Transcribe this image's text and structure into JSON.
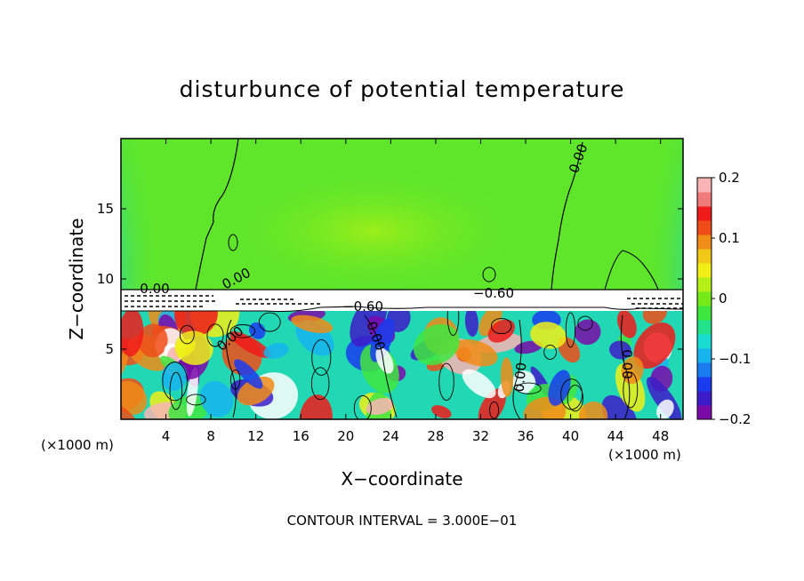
{
  "chart_data": {
    "type": "heatmap",
    "title": "disturbunce of potential temperature",
    "xlabel": "X−coordinate",
    "ylabel": "Z−coordinate",
    "x_unit_label": "(×1000 m)",
    "y_unit_label": "(×1000 m)",
    "xlim": [
      0,
      50
    ],
    "ylim": [
      0,
      20
    ],
    "x_ticks": [
      4,
      8,
      12,
      16,
      20,
      24,
      28,
      32,
      36,
      40,
      44,
      48
    ],
    "y_ticks": [
      5,
      10,
      15
    ],
    "colorbar": {
      "range": [
        -0.2,
        0.2
      ],
      "ticks": [
        -0.2,
        -0.1,
        0,
        0.1,
        0.2
      ],
      "tick_labels": [
        "−0.2",
        "−0.1",
        "0",
        "0.1",
        "0.2"
      ],
      "colors": [
        "#7a0aa8",
        "#3c1cc8",
        "#1a3cf0",
        "#1a7af0",
        "#18b4f0",
        "#18dcd2",
        "#22e28a",
        "#3fe63f",
        "#74ea18",
        "#b4f018",
        "#f0f018",
        "#f0c818",
        "#f08c18",
        "#f04c18",
        "#f01a1a",
        "#f07a7a",
        "#f8b4b4"
      ]
    },
    "contour_interval_text": "CONTOUR INTERVAL = 3.000E−01",
    "contour_labels": [
      "0.00",
      "0.00",
      "0.00",
      "0.00",
      "0.00",
      "0.00",
      "0.00",
      "−0.60",
      "−0.60"
    ]
  },
  "colors": {
    "upper_field": "#5fe62a",
    "upper_field_light": "#86f01a",
    "upper_field_edge": "#35dca0",
    "inversion_band": "#ffffff",
    "contour": "#000000"
  }
}
